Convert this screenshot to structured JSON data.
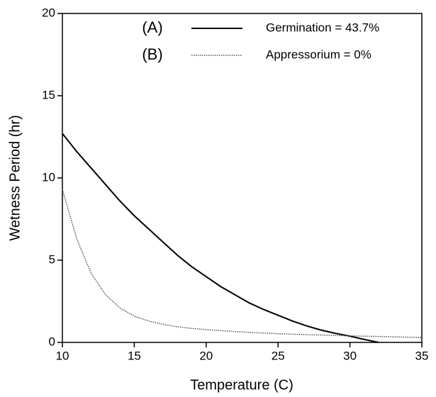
{
  "chart_data": {
    "type": "line",
    "x_label": "Temperature (C)",
    "y_label": "Wetness Period (hr)",
    "x": [
      10,
      11,
      12,
      13,
      14,
      15,
      16,
      17,
      18,
      19,
      20,
      21,
      22,
      23,
      24,
      25,
      26,
      27,
      28,
      29,
      30,
      31,
      32,
      33,
      34,
      35
    ],
    "series": [
      {
        "tag": "(A)",
        "name": "Germination = 43.7%",
        "color": "#000000",
        "dash": "solid",
        "values": [
          12.7,
          11.6,
          10.6,
          9.6,
          8.6,
          7.7,
          6.9,
          6.1,
          5.3,
          4.6,
          4.0,
          3.4,
          2.9,
          2.4,
          2.0,
          1.65,
          1.3,
          1.0,
          0.75,
          0.55,
          0.38,
          0.18,
          0,
          null,
          null,
          null
        ]
      },
      {
        "tag": "(B)",
        "name": "Appressorium = 0%",
        "color": "#555555",
        "dash": "dotted",
        "values": [
          9.3,
          6.3,
          4.2,
          2.9,
          2.1,
          1.6,
          1.3,
          1.1,
          0.95,
          0.85,
          0.78,
          0.72,
          0.66,
          0.61,
          0.57,
          0.53,
          0.5,
          0.47,
          0.45,
          0.42,
          0.4,
          0.38,
          0.36,
          0.34,
          0.32,
          0.3
        ]
      }
    ],
    "xlim": [
      10,
      35
    ],
    "ylim": [
      0,
      20
    ],
    "xticks": [
      10,
      15,
      20,
      25,
      30,
      35
    ],
    "yticks": [
      0,
      5,
      10,
      15,
      20
    ],
    "grid": false
  }
}
